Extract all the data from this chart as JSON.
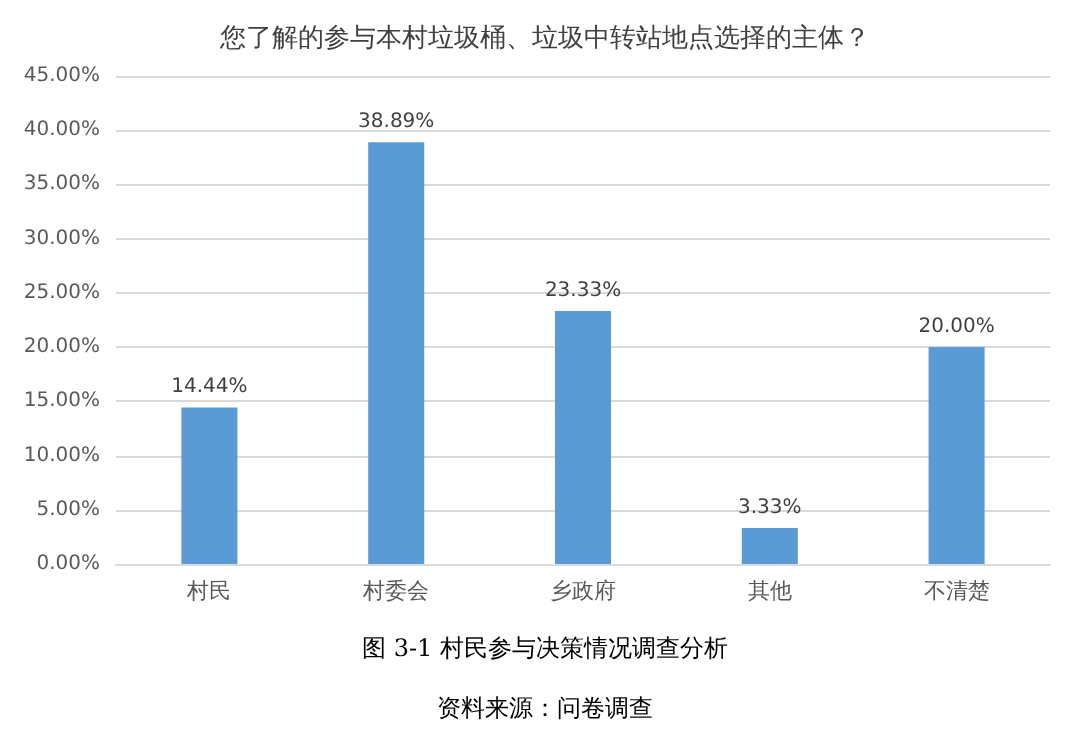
{
  "chart_data": {
    "type": "bar",
    "title": "您了解的参与本村垃圾桶、垃圾中转站地点选择的主体？",
    "categories": [
      "村民",
      "村委会",
      "乡政府",
      "其他",
      "不清楚"
    ],
    "values": [
      14.44,
      38.89,
      23.33,
      3.33,
      20.0
    ],
    "value_labels": [
      "14.44%",
      "38.89%",
      "23.33%",
      "3.33%",
      "20.00%"
    ],
    "color": "#5b9bd5",
    "ylim": [
      0,
      45
    ],
    "yticks": [
      {
        "value": 0,
        "label": "0.00%"
      },
      {
        "value": 5,
        "label": "5.00%"
      },
      {
        "value": 10,
        "label": "10.00%"
      },
      {
        "value": 15,
        "label": "15.00%"
      },
      {
        "value": 20,
        "label": "20.00%"
      },
      {
        "value": 25,
        "label": "25.00%"
      },
      {
        "value": 30,
        "label": "30.00%"
      },
      {
        "value": 35,
        "label": "35.00%"
      },
      {
        "value": 40,
        "label": "40.00%"
      },
      {
        "value": 45,
        "label": "45.00%"
      }
    ],
    "grid": "y",
    "annotations": [
      "图 3-1 村民参与决策情况调查分析",
      "资料来源：问卷调查"
    ]
  }
}
